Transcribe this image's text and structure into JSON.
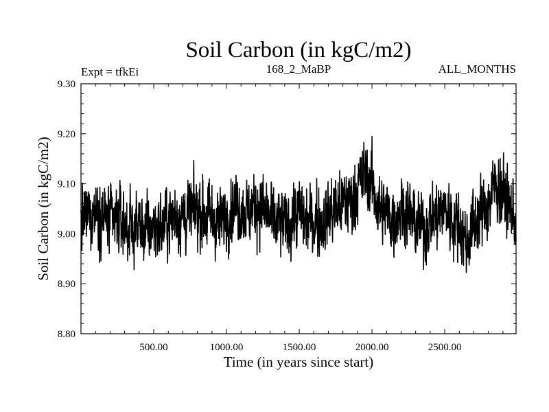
{
  "chart_data": {
    "type": "line",
    "title": "Soil Carbon (in kgC/m2)",
    "subtitle_left": "Expt = tfkEi",
    "subtitle_center": "168_2_MaBP",
    "subtitle_right": "ALL_MONTHS",
    "xlabel": "Time (in years since start)",
    "ylabel": "Soil Carbon (in kgC/m2)",
    "xlim": [
      0,
      2990
    ],
    "ylim": [
      8.8,
      9.3
    ],
    "xticks": [
      500,
      1000,
      1500,
      2000,
      2500
    ],
    "xtick_labels": [
      "500.00",
      "1000.00",
      "1500.00",
      "2000.00",
      "2500.00"
    ],
    "yticks": [
      8.8,
      8.9,
      9.0,
      9.1,
      9.2,
      9.3
    ],
    "ytick_labels": [
      "8.80",
      "8.90",
      "9.00",
      "9.10",
      "9.20",
      "9.30"
    ],
    "grid": false,
    "line_color": "#000000",
    "series": [
      {
        "x": [
          0,
          50,
          100,
          150,
          200,
          250,
          300,
          350,
          400,
          450,
          500,
          550,
          600,
          650,
          700,
          750,
          800,
          850,
          900,
          950,
          1000,
          1050,
          1100,
          1150,
          1200,
          1250,
          1300,
          1350,
          1400,
          1450,
          1500,
          1550,
          1600,
          1650,
          1700,
          1750,
          1800,
          1850,
          1900,
          1950,
          2000,
          2050,
          2100,
          2150,
          2200,
          2250,
          2300,
          2350,
          2400,
          2450,
          2500,
          2550,
          2600,
          2650,
          2700,
          2750,
          2800,
          2850,
          2900,
          2950,
          2990
        ],
        "y": [
          9.02,
          9.04,
          9.05,
          9.04,
          9.02,
          9.03,
          9.02,
          9.01,
          9.02,
          9.0,
          9.02,
          9.01,
          9.03,
          9.04,
          9.03,
          9.04,
          9.05,
          9.04,
          9.03,
          9.02,
          9.04,
          9.06,
          9.05,
          9.04,
          9.06,
          9.05,
          9.03,
          9.02,
          9.02,
          9.03,
          9.04,
          9.02,
          9.03,
          9.02,
          9.04,
          9.05,
          9.06,
          9.07,
          9.09,
          9.12,
          9.1,
          9.05,
          9.04,
          9.03,
          9.05,
          9.04,
          9.02,
          9.01,
          9.03,
          9.04,
          9.05,
          9.03,
          9.02,
          8.98,
          9.02,
          9.04,
          9.06,
          9.1,
          9.08,
          9.05,
          9.03
        ],
        "noise_amplitude": 0.045,
        "min": 8.89,
        "max": 9.215
      }
    ]
  }
}
